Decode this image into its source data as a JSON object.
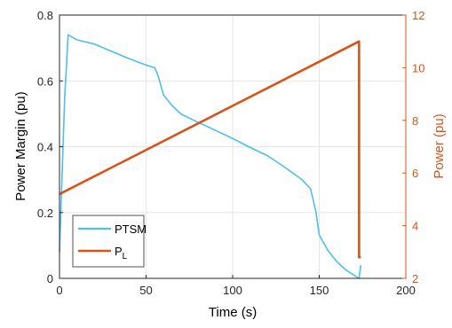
{
  "chart_data": {
    "type": "line",
    "title": "",
    "xlabel": "Time (s)",
    "ylabel_left": "Power Margin (pu)",
    "ylabel_right": "Power (pu)",
    "xlim": [
      0,
      200
    ],
    "ylim_left": [
      0,
      0.8
    ],
    "ylim_right": [
      2,
      12
    ],
    "x_ticks": [
      "0",
      "50",
      "100",
      "150",
      "200"
    ],
    "y_ticks_left": [
      "0",
      "0.2",
      "0.4",
      "0.6",
      "0.8"
    ],
    "y_ticks_right": [
      "2",
      "4",
      "6",
      "8",
      "10",
      "12"
    ],
    "grid": true,
    "legend_position": "bottom-left",
    "colors": {
      "left_axis": "#000000",
      "right_axis": "#D95319",
      "grid": "#e6e6e6"
    },
    "series": [
      {
        "name": "PTSM",
        "axis": "left",
        "color": "#4DBEEE",
        "x": [
          0,
          3,
          5,
          10,
          20,
          30,
          40,
          50,
          55,
          57,
          60,
          65,
          70,
          80,
          90,
          100,
          110,
          120,
          130,
          140,
          145,
          148,
          150,
          155,
          160,
          165,
          170,
          173,
          174
        ],
        "y": [
          0.08,
          0.55,
          0.74,
          0.725,
          0.712,
          0.69,
          0.668,
          0.648,
          0.64,
          0.615,
          0.558,
          0.525,
          0.5,
          0.474,
          0.45,
          0.425,
          0.398,
          0.373,
          0.338,
          0.3,
          0.272,
          0.205,
          0.132,
          0.085,
          0.052,
          0.027,
          0.01,
          0.0,
          0.04
        ]
      },
      {
        "name": "P",
        "name_subscript": "L",
        "axis": "right",
        "color": "#D95319",
        "x": [
          0,
          173,
          173,
          174
        ],
        "y": [
          5.2,
          11.0,
          2.8,
          2.8
        ]
      }
    ]
  }
}
